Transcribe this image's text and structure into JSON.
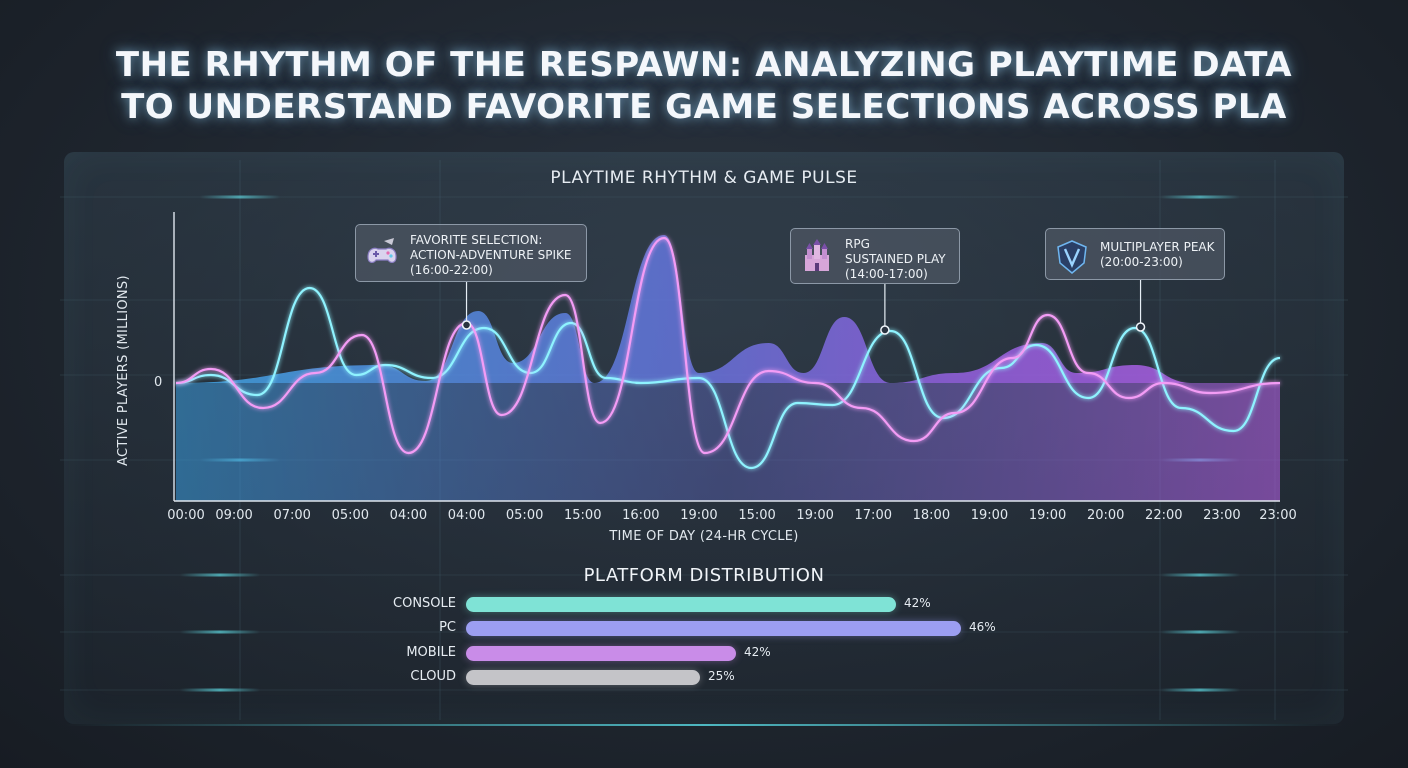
{
  "title": {
    "line1": "THE RHYTHM OF THE RESPAWN: ANALYZING PLAYTIME DATA",
    "line2": "TO UNDERSTAND FAVORITE GAME SELECTIONS ACROSS PLA"
  },
  "chart_data": [
    {
      "type": "line",
      "title": "PLAYTIME RHYTHM & GAME PULSE",
      "xlabel": "TIME OF DAY (24-HR CYCLE)",
      "ylabel": "ACTIVE PLAYERS (MILLIONS)",
      "y_tick_labels": [
        "0"
      ],
      "categories": [
        "00:00",
        "09:00",
        "07:00",
        "05:00",
        "04:00",
        "04:00",
        "05:00",
        "15:00",
        "16:00",
        "19:00",
        "15:00",
        "19:00",
        "17:00",
        "18:00",
        "19:00",
        "19:00",
        "20:00",
        "22:00",
        "23:00",
        "23:00"
      ],
      "grid": true,
      "colors": {
        "cyan": "#8ff3ff",
        "pink": "#f39cf5",
        "purple": "#a66cf0",
        "blue_fill": "#3fa8e6"
      },
      "annotations": [
        {
          "lines": [
            "FAVORITE SELECTION:",
            "ACTION-ADVENTURE SPIKE",
            "(16:00-22:00)"
          ],
          "icon": "gamepad-icon",
          "x_index": 5
        },
        {
          "lines": [
            "RPG",
            "SUSTAINED PLAY",
            "(14:00-17:00)"
          ],
          "icon": "castle-icon",
          "x_index": 12.2
        },
        {
          "lines": [
            "MULTIPLAYER PEAK",
            "(20:00-23:00)"
          ],
          "icon": "shield-icon",
          "x_index": 16.6
        }
      ]
    },
    {
      "type": "bar",
      "orientation": "horizontal",
      "title": "PLATFORM DISTRIBUTION",
      "categories": [
        "CONSOLE",
        "PC",
        "MOBILE",
        "CLOUD"
      ],
      "values": [
        42,
        46,
        42,
        25
      ],
      "value_labels": [
        "42%",
        "46%",
        "42%",
        "25%"
      ],
      "colors": [
        "#7fe3d6",
        "#9c9ef2",
        "#c98ce8",
        "#c4c4c8"
      ]
    }
  ]
}
